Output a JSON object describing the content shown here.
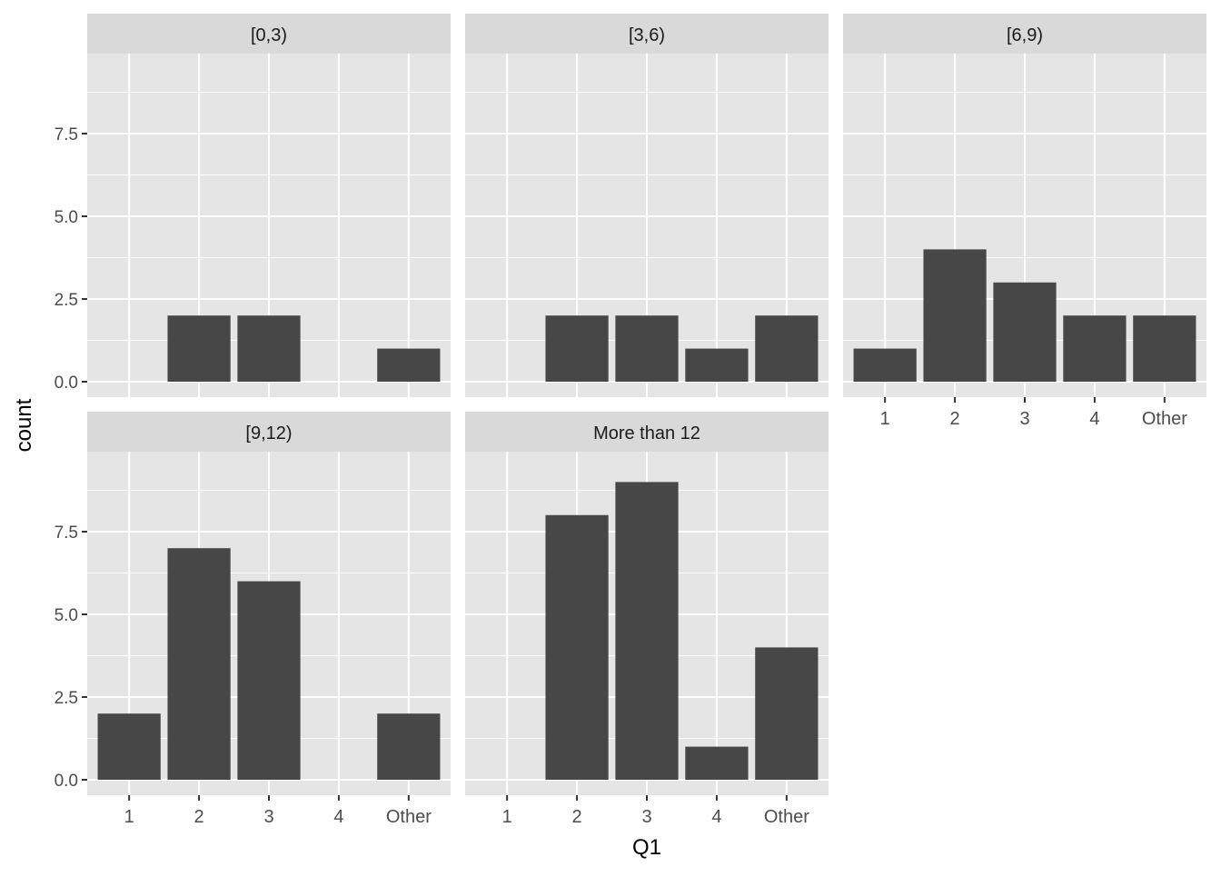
{
  "chart_data": {
    "type": "bar",
    "xlabel": "Q1",
    "ylabel": "count",
    "categories": [
      "1",
      "2",
      "3",
      "4",
      "Other"
    ],
    "y_ticks": [
      "0.0",
      "2.5",
      "5.0",
      "7.5"
    ],
    "ylim": [
      0,
      9.45
    ],
    "grid": true,
    "colors": {
      "bar": "#474747",
      "panel_bg": "#e5e5e5",
      "strip_bg": "#d9d9d9",
      "grid": "#ffffff",
      "text": "#4d4d4d"
    },
    "facets": [
      {
        "label": "[0,3)",
        "values": [
          0,
          2,
          2,
          0,
          1
        ]
      },
      {
        "label": "[3,6)",
        "values": [
          0,
          2,
          2,
          1,
          2
        ]
      },
      {
        "label": "[6,9)",
        "values": [
          1,
          4,
          3,
          2,
          2
        ]
      },
      {
        "label": "[9,12)",
        "values": [
          2,
          7,
          6,
          0,
          2
        ]
      },
      {
        "label": "More than 12",
        "values": [
          0,
          8,
          9,
          1,
          4
        ]
      }
    ]
  }
}
